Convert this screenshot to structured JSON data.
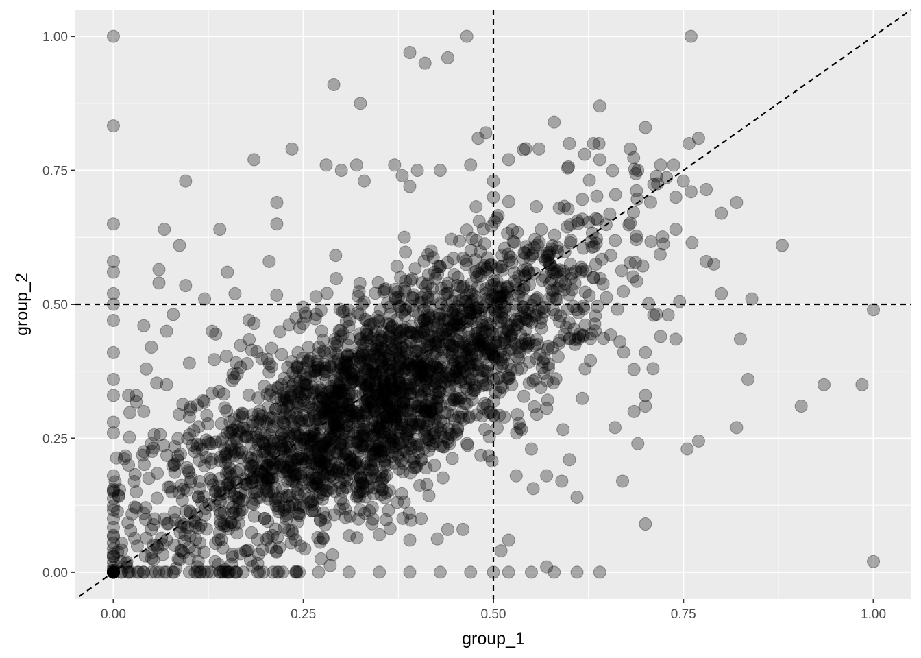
{
  "chart_data": {
    "type": "scatter",
    "title": "",
    "xlabel": "group_1",
    "ylabel": "group_2",
    "xlim": [
      -0.05,
      1.05
    ],
    "ylim": [
      -0.05,
      1.05
    ],
    "x_ticks": [
      0.0,
      0.25,
      0.5,
      0.75,
      1.0
    ],
    "x_tick_labels": [
      "0.00",
      "0.25",
      "0.50",
      "0.75",
      "1.00"
    ],
    "y_ticks": [
      0.0,
      0.25,
      0.5,
      0.75,
      1.0
    ],
    "y_tick_labels": [
      "0.00",
      "0.25",
      "0.50",
      "0.75",
      "1.00"
    ],
    "grid": true,
    "point_color": "#000000",
    "point_alpha": 0.3,
    "reference_lines": [
      {
        "type": "vertical",
        "x": 0.5,
        "style": "dashed"
      },
      {
        "type": "horizontal",
        "y": 0.5,
        "style": "dashed"
      },
      {
        "type": "diagonal",
        "slope": 1,
        "intercept": 0,
        "style": "dashed"
      }
    ],
    "points": [
      [
        0.0,
        1.0
      ],
      [
        0.0,
        0.833
      ],
      [
        0.0,
        0.65
      ],
      [
        0.0,
        0.58
      ],
      [
        0.0,
        0.56
      ],
      [
        0.0,
        0.52
      ],
      [
        0.0,
        0.5
      ],
      [
        0.0,
        0.47
      ],
      [
        0.0,
        0.41
      ],
      [
        0.0,
        0.36
      ],
      [
        0.0,
        0.33
      ],
      [
        0.0,
        0.28
      ],
      [
        0.0,
        0.26
      ],
      [
        0.0,
        0.18
      ],
      [
        0.0,
        0.15
      ],
      [
        0.0,
        0.1
      ],
      [
        0.0,
        0.03
      ],
      [
        0.0,
        0.0
      ],
      [
        0.01,
        0.02
      ],
      [
        0.02,
        0.0
      ],
      [
        0.04,
        0.0
      ],
      [
        0.06,
        0.0
      ],
      [
        0.1,
        0.0
      ],
      [
        0.11,
        0.0
      ],
      [
        0.14,
        0.0
      ],
      [
        0.16,
        0.0
      ],
      [
        0.19,
        0.0
      ],
      [
        0.21,
        0.0
      ],
      [
        0.24,
        0.0
      ],
      [
        0.27,
        0.0
      ],
      [
        0.31,
        0.0
      ],
      [
        0.35,
        0.0
      ],
      [
        0.39,
        0.0
      ],
      [
        0.43,
        0.0
      ],
      [
        0.47,
        0.0
      ],
      [
        0.5,
        0.0
      ],
      [
        0.52,
        0.0
      ],
      [
        0.55,
        0.0
      ],
      [
        0.58,
        0.0
      ],
      [
        0.61,
        0.0
      ],
      [
        0.64,
        0.0
      ],
      [
        0.095,
        0.73
      ],
      [
        0.067,
        0.64
      ],
      [
        0.087,
        0.61
      ],
      [
        0.14,
        0.64
      ],
      [
        0.185,
        0.77
      ],
      [
        0.235,
        0.79
      ],
      [
        0.205,
        0.58
      ],
      [
        0.215,
        0.65
      ],
      [
        0.215,
        0.69
      ],
      [
        0.29,
        0.91
      ],
      [
        0.325,
        0.875
      ],
      [
        0.39,
        0.97
      ],
      [
        0.41,
        0.95
      ],
      [
        0.44,
        0.96
      ],
      [
        0.465,
        1.0
      ],
      [
        0.76,
        1.0
      ],
      [
        0.28,
        0.76
      ],
      [
        0.3,
        0.75
      ],
      [
        0.32,
        0.76
      ],
      [
        0.33,
        0.73
      ],
      [
        0.37,
        0.76
      ],
      [
        0.38,
        0.74
      ],
      [
        0.4,
        0.75
      ],
      [
        0.39,
        0.72
      ],
      [
        0.43,
        0.75
      ],
      [
        0.47,
        0.76
      ],
      [
        0.48,
        0.81
      ],
      [
        0.49,
        0.82
      ],
      [
        0.5,
        0.73
      ],
      [
        0.5,
        0.7
      ],
      [
        0.58,
        0.84
      ],
      [
        0.6,
        0.8
      ],
      [
        0.62,
        0.78
      ],
      [
        0.64,
        0.87
      ],
      [
        0.64,
        0.77
      ],
      [
        0.56,
        0.79
      ],
      [
        0.52,
        0.77
      ],
      [
        0.7,
        0.83
      ],
      [
        0.68,
        0.79
      ],
      [
        0.69,
        0.75
      ],
      [
        0.72,
        0.76
      ],
      [
        0.77,
        0.81
      ],
      [
        0.75,
        0.73
      ],
      [
        0.76,
        0.71
      ],
      [
        0.74,
        0.7
      ],
      [
        0.8,
        0.67
      ],
      [
        0.82,
        0.69
      ],
      [
        0.88,
        0.61
      ],
      [
        0.74,
        0.64
      ],
      [
        0.78,
        0.58
      ],
      [
        0.79,
        0.575
      ],
      [
        0.8,
        0.52
      ],
      [
        0.84,
        0.51
      ],
      [
        0.745,
        0.505
      ],
      [
        0.73,
        0.48
      ],
      [
        0.72,
        0.44
      ],
      [
        0.74,
        0.435
      ],
      [
        0.7,
        0.41
      ],
      [
        0.71,
        0.38
      ],
      [
        0.7,
        0.33
      ],
      [
        0.7,
        0.31
      ],
      [
        0.685,
        0.3
      ],
      [
        0.69,
        0.24
      ],
      [
        0.66,
        0.27
      ],
      [
        0.67,
        0.17
      ],
      [
        0.7,
        0.09
      ],
      [
        0.755,
        0.23
      ],
      [
        0.77,
        0.245
      ],
      [
        0.82,
        0.27
      ],
      [
        0.825,
        0.435
      ],
      [
        0.835,
        0.36
      ],
      [
        0.905,
        0.31
      ],
      [
        0.935,
        0.35
      ],
      [
        0.985,
        0.35
      ],
      [
        1.0,
        0.49
      ],
      [
        1.0,
        0.02
      ],
      [
        0.61,
        0.14
      ],
      [
        0.59,
        0.17
      ],
      [
        0.6,
        0.21
      ],
      [
        0.57,
        0.18
      ],
      [
        0.55,
        0.23
      ],
      [
        0.53,
        0.18
      ],
      [
        0.52,
        0.06
      ],
      [
        0.51,
        0.04
      ],
      [
        0.57,
        0.01
      ],
      [
        0.46,
        0.08
      ],
      [
        0.44,
        0.08
      ],
      [
        0.39,
        0.06
      ],
      [
        0.35,
        0.07
      ],
      [
        0.04,
        0.46
      ],
      [
        0.06,
        0.565
      ],
      [
        0.06,
        0.54
      ],
      [
        0.095,
        0.535
      ],
      [
        0.12,
        0.51
      ],
      [
        0.15,
        0.56
      ],
      [
        0.16,
        0.52
      ],
      [
        0.07,
        0.45
      ],
      [
        0.05,
        0.42
      ],
      [
        0.03,
        0.33
      ],
      [
        0.02,
        0.33
      ],
      [
        0.04,
        0.3
      ],
      [
        0.07,
        0.35
      ],
      [
        0.1,
        0.39
      ],
      [
        0.1,
        0.29
      ],
      [
        0.13,
        0.45
      ],
      [
        0.05,
        0.24
      ],
      [
        0.02,
        0.2
      ],
      [
        0.03,
        0.15
      ],
      [
        0.04,
        0.11
      ],
      [
        0.07,
        0.06
      ],
      [
        0.09,
        0.04
      ],
      [
        0.03,
        0.12
      ],
      [
        0.05,
        0.08
      ]
    ]
  }
}
